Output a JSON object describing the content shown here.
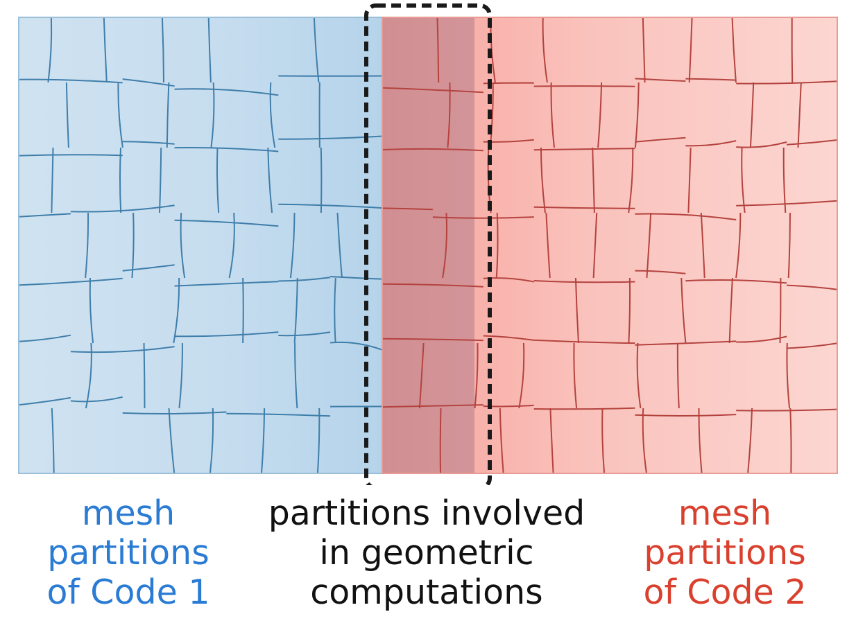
{
  "colors": {
    "code1_text": "#2a7bd4",
    "code2_text": "#d9402e",
    "center_text": "#111111",
    "code1_fill": "#c5dcee",
    "code1_edge": "#3f7eaa",
    "code2_fill": "#f9b8b2",
    "code2_edge": "#b4433f",
    "overlap_fill": "#b27d8a",
    "box_stroke": "#1a1a1a"
  },
  "labels": {
    "code1": [
      "mesh",
      "partitions",
      "of Code 1"
    ],
    "involved": [
      "partitions involved",
      "in geometric",
      "computations"
    ],
    "code2": [
      "mesh",
      "partitions",
      "of Code 2"
    ]
  }
}
